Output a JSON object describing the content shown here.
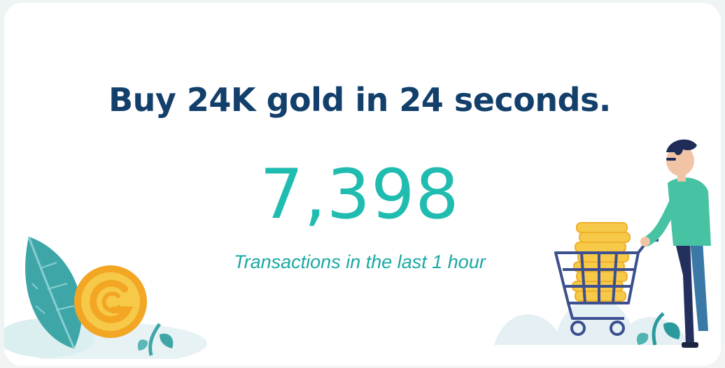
{
  "banner": {
    "headline": "Buy 24K gold in 24 seconds.",
    "transactions_count": "7,398",
    "transactions_caption": "Transactions in the last 1 hour"
  },
  "illustration": {
    "left": "leaf-and-gold-coin",
    "right": "man-pushing-cart-of-gold-coins"
  },
  "colors": {
    "headline": "#133f6b",
    "accent_teal": "#20bcb0",
    "gold": "#f3b62b",
    "leaf": "#3fa6a8"
  }
}
